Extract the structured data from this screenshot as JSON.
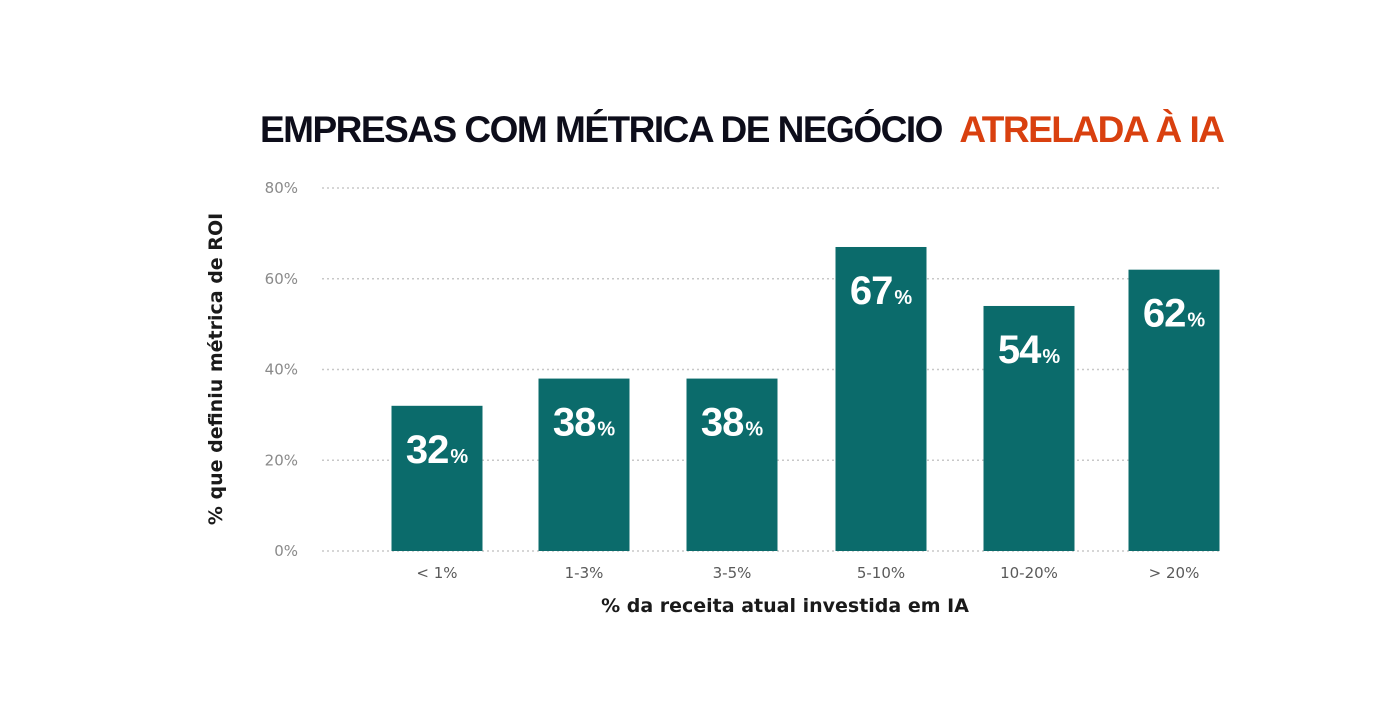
{
  "chart_data": {
    "type": "bar",
    "title": "EMPRESAS COM MÉTRICA DE NEGÓCIO",
    "title_highlight": "ATRELADA À IA",
    "categories": [
      "< 1%",
      "1-3%",
      "3-5%",
      "5-10%",
      "10-20%",
      "> 20%"
    ],
    "values": [
      32,
      38,
      38,
      67,
      54,
      62
    ],
    "value_labels": [
      "32",
      "38",
      "38",
      "67",
      "54",
      "62"
    ],
    "value_suffix": "%",
    "xlabel": "% da receita atual investida em IA",
    "ylabel": "% que definiu métrica de ROI",
    "ylim": [
      0,
      80
    ],
    "yticks": [
      0,
      20,
      40,
      60,
      80
    ],
    "ytick_labels": [
      "0%",
      "20%",
      "40%",
      "60%",
      "80%"
    ],
    "grid": true,
    "colors": {
      "bar": "#0b6b6b",
      "title": "#0d0d1a",
      "highlight": "#d9400f",
      "grid": "#c8c8c8"
    }
  }
}
